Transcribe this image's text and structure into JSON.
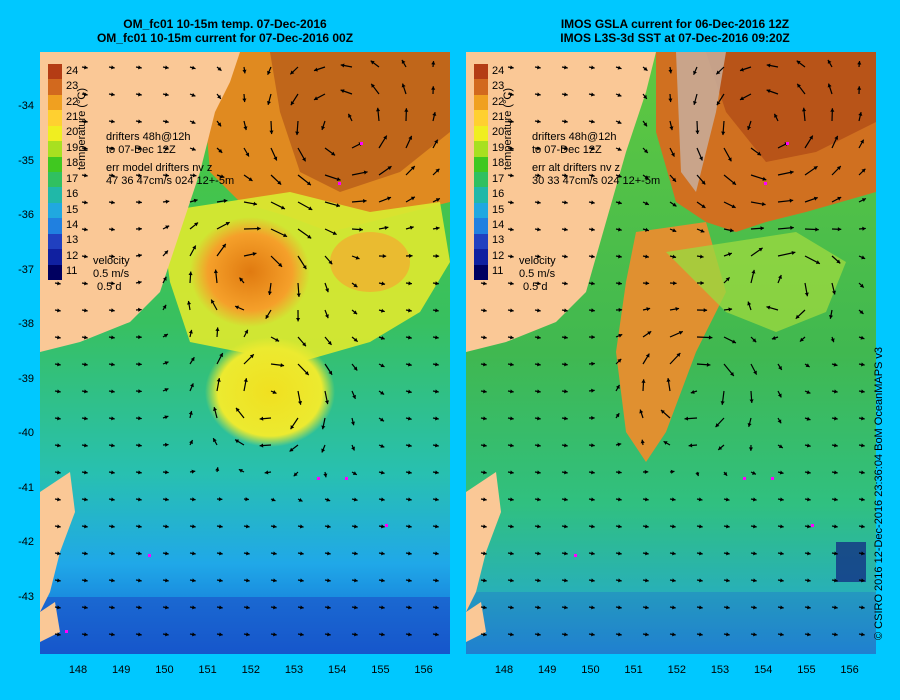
{
  "left": {
    "title_line1": "OM_fc01 10-15m temp. 07-Dec-2016",
    "title_line2": "OM_fc01 10-15m current for 07-Dec-2016 00Z",
    "annotation": {
      "drifters": "drifters 48h@12h",
      "to": "to 07-Dec 12Z",
      "err_label": "err model drifters nv z",
      "err_values": "47 36 47cm/s 024 12+-5m"
    }
  },
  "right": {
    "title_line1": "IMOS GSLA current for 06-Dec-2016 12Z",
    "title_line2": "IMOS L3S-3d SST at 07-Dec-2016 09:20Z",
    "annotation": {
      "drifters": "drifters 48h@12h",
      "to": "to 07-Dec 12Z",
      "err_label": "err alt drifters nv z",
      "err_values": "30 33 47cm/s 024 12+-5m"
    }
  },
  "colorbar": {
    "title": "temperature (°C)",
    "labels": [
      "24",
      "23",
      "22",
      "21",
      "20",
      "19",
      "18",
      "17",
      "16",
      "15",
      "14",
      "13",
      "12",
      "11"
    ],
    "colors": [
      "#b43c14",
      "#d2691e",
      "#f0a020",
      "#ffd030",
      "#f0ee20",
      "#a8e020",
      "#40c820",
      "#30c060",
      "#20b8a8",
      "#20a8e0",
      "#2080e0",
      "#2040c0",
      "#1020a0",
      "#000060"
    ]
  },
  "velocity_legend": {
    "label": "velocity",
    "speed": "0.5 m/s",
    "time": "0.5 d"
  },
  "y_ticks": [
    "-34",
    "-35",
    "-36",
    "-37",
    "-38",
    "-39",
    "-40",
    "-41",
    "-42",
    "-43"
  ],
  "x_ticks": [
    "148",
    "149",
    "150",
    "151",
    "152",
    "153",
    "154",
    "155",
    "156"
  ],
  "credit": "© CSIRO 2016   12-Dec-2016 23:36:04 BoM OceanMAPS v3",
  "colors": {
    "background": "#00c8ff",
    "land": "#fac896",
    "drifters": "#ff00ff",
    "no_data": "#c8aa96"
  }
}
